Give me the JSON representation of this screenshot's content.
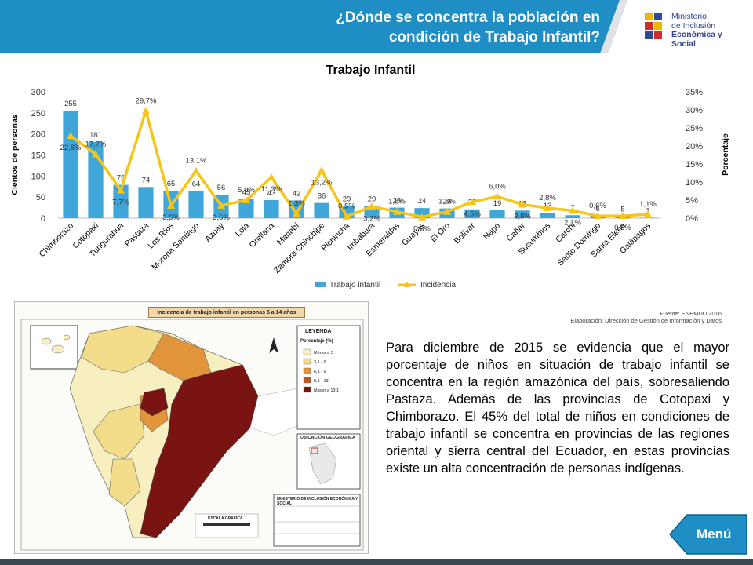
{
  "header": {
    "title_line1": "¿Dónde se concentra la población en",
    "title_line2": "condición de Trabajo Infantil?"
  },
  "logo": {
    "line1": "Ministerio",
    "line2": "de Inclusión",
    "line3": "Económica y Social"
  },
  "colors": {
    "header": "#1e8ec4",
    "bar": "#3fa6da",
    "line": "#f5c518",
    "map_dark": "#7a1412",
    "map_orange": "#e2943a",
    "map_yellow": "#f3dc8a",
    "map_light": "#f7efc0",
    "menu": "#1e8ec4",
    "bottom": "#3b4653"
  },
  "chart_data": {
    "type": "bar",
    "title": "Trabajo Infantil",
    "categories": [
      "Chimborazo",
      "Cotopaxi",
      "Tungurahua",
      "Pastaza",
      "Los Ríos",
      "Morona Santiago",
      "Azuay",
      "Loja",
      "Orellana",
      "Manabí",
      "Zamora Chinchipe",
      "Pichincha",
      "Imbabura",
      "Esmeraldas",
      "Guayas",
      "El Oro",
      "Bolívar",
      "Napo",
      "Cañar",
      "Sucumbíos",
      "Carchi",
      "Santo Domingo",
      "Santa Elena",
      "Galápagos"
    ],
    "series": [
      {
        "name": "Trabajo infantil",
        "axis": "left",
        "type": "bar",
        "values": [
          255,
          181,
          79,
          74,
          65,
          64,
          56,
          45,
          43,
          42,
          36,
          29,
          29,
          25,
          24,
          23,
          21,
          19,
          18,
          13,
          7,
          6,
          5,
          1
        ]
      },
      {
        "name": "Incidencia",
        "axis": "right",
        "type": "line",
        "values": [
          22.8,
          17.7,
          7.7,
          29.7,
          3.5,
          13.1,
          3.5,
          5.0,
          11.3,
          1.3,
          13.2,
          0.5,
          3.2,
          1.8,
          0.3,
          1.8,
          4.5,
          6.0,
          3.8,
          2.8,
          2.1,
          0.6,
          0.6,
          1.1
        ],
        "labels": [
          "22,8%",
          "17,7%",
          "7,7%",
          "29,7%",
          "3,5%",
          "13,1%",
          "3,5%",
          "5,0%",
          "11,3%",
          "1,3%",
          "13,2%",
          "0,5%",
          "3,2%",
          "1,8%",
          "0,3%",
          "1,8%",
          "4,5%",
          "6,0%",
          "3,8%",
          "2,8%",
          "2,1%",
          "0,6%",
          "0,6%",
          "1,1%"
        ]
      }
    ],
    "ylabel": "Cientos de personas",
    "y2label": "Porcentaje",
    "ylim": [
      0,
      300
    ],
    "y2lim": [
      0,
      35
    ],
    "yticks": [
      "0",
      "50",
      "100",
      "150",
      "200",
      "250",
      "300"
    ],
    "y2ticks": [
      "0%",
      "5%",
      "10%",
      "15%",
      "20%",
      "25%",
      "30%",
      "35%"
    ],
    "legend": [
      "Trabajo infantil",
      "Incidencia"
    ],
    "legend_position": "bottom",
    "grid": false
  },
  "map": {
    "title": "Incidencia de trabajo infantil en personas 5 a 14 años",
    "legend_title": "LEYENDA",
    "legend_subtitle": "Porcentaje (%)",
    "legend_items": [
      "Menor a 3",
      "3,1 - 6",
      "6,1 - 9",
      "9,1 - 13",
      "Mayor a 13,1"
    ],
    "inset_title": "UBICACIÓN GEOGRÁFICA",
    "ministry_block": "MINISTERIO DE INCLUSIÓN ECONÓMICA Y SOCIAL",
    "scale_label": "ESCALA GRÁFICA"
  },
  "source": {
    "line1": "Fuente: ENEMDU 2016",
    "line2": "Elaboración: Dirección de Gestión de Información y Datos"
  },
  "paragraph": "Para diciembre de 2015 se evidencia que el mayor porcentaje de niños en situación de trabajo infantil se concentra en la región amazónica del país, sobresaliendo Pastaza. Además de las provincias de Cotopaxi y Chimborazo. El 45% del total de niños en condiciones de trabajo infantil se concentra en provincias de las regiones oriental y sierra central del Ecuador, en estas provincias existe un alta concentración de personas indígenas.",
  "menu": {
    "label": "Menú"
  }
}
